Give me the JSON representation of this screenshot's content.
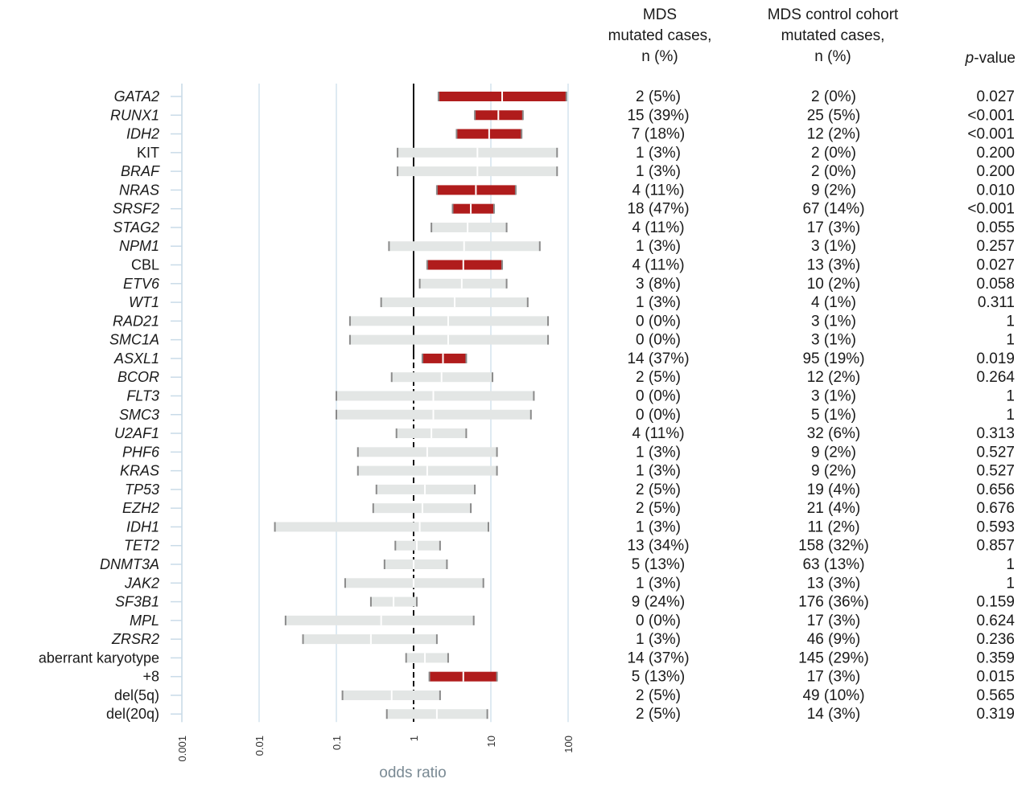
{
  "headers": {
    "mds": [
      "MDS",
      "mutated cases,",
      "n (%)"
    ],
    "control": [
      "MDS control cohort",
      "mutated cases,",
      "n (%)"
    ],
    "pvalue_italic": "p",
    "pvalue_rest": "-value"
  },
  "chart_data": {
    "type": "forest",
    "xlabel": "odds ratio",
    "x_scale": "log10",
    "xlim": [
      0.001,
      100
    ],
    "x_ticks": [
      "0.001",
      "0.01",
      "0.1",
      "1",
      "10",
      "100"
    ],
    "x_tick_values": [
      0.001,
      0.01,
      0.1,
      1,
      10,
      100
    ],
    "reference_line": 1,
    "colors": {
      "significant": "#b01c1c",
      "non_significant": "#e3e6e5",
      "axis": "#c9dbe8",
      "cap": "#8a8a8a"
    },
    "rows": [
      {
        "label": "GATA2",
        "italic": true,
        "lo": 2.1,
        "or": 14,
        "hi": 95,
        "sig": true,
        "mds": "2 (5%)",
        "ctrl": "2 (0%)",
        "p": "0.027"
      },
      {
        "label": "RUNX1",
        "italic": true,
        "lo": 6.2,
        "or": 12.5,
        "hi": 26,
        "sig": true,
        "mds": "15 (39%)",
        "ctrl": "25 (5%)",
        "p": "<0.001"
      },
      {
        "label": "IDH2",
        "italic": true,
        "lo": 3.6,
        "or": 9.5,
        "hi": 25,
        "sig": true,
        "mds": "7 (18%)",
        "ctrl": "12 (2%)",
        "p": "<0.001"
      },
      {
        "label": "KIT",
        "italic": false,
        "lo": 0.62,
        "or": 6.7,
        "hi": 72,
        "sig": false,
        "mds": "1 (3%)",
        "ctrl": "2 (0%)",
        "p": "0.200"
      },
      {
        "label": "BRAF",
        "italic": true,
        "lo": 0.62,
        "or": 6.7,
        "hi": 72,
        "sig": false,
        "mds": "1 (3%)",
        "ctrl": "2 (0%)",
        "p": "0.200"
      },
      {
        "label": "NRAS",
        "italic": true,
        "lo": 2.0,
        "or": 6.4,
        "hi": 21,
        "sig": true,
        "mds": "4 (11%)",
        "ctrl": "9 (2%)",
        "p": "0.010"
      },
      {
        "label": "SRSF2",
        "italic": true,
        "lo": 3.2,
        "or": 5.5,
        "hi": 11,
        "sig": true,
        "mds": "18 (47%)",
        "ctrl": "67 (14%)",
        "p": "<0.001"
      },
      {
        "label": "STAG2",
        "italic": true,
        "lo": 1.7,
        "or": 5.0,
        "hi": 16,
        "sig": false,
        "mds": "4 (11%)",
        "ctrl": "17 (3%)",
        "p": "0.055"
      },
      {
        "label": "NPM1",
        "italic": true,
        "lo": 0.48,
        "or": 4.5,
        "hi": 43,
        "sig": false,
        "mds": "1 (3%)",
        "ctrl": "3 (1%)",
        "p": "0.257"
      },
      {
        "label": "CBL",
        "italic": false,
        "lo": 1.5,
        "or": 4.4,
        "hi": 14,
        "sig": true,
        "mds": "4 (11%)",
        "ctrl": "13 (3%)",
        "p": "0.027"
      },
      {
        "label": "ETV6",
        "italic": true,
        "lo": 1.2,
        "or": 4.2,
        "hi": 16,
        "sig": false,
        "mds": "3 (8%)",
        "ctrl": "10 (2%)",
        "p": "0.058"
      },
      {
        "label": "WT1",
        "italic": true,
        "lo": 0.38,
        "or": 3.4,
        "hi": 30,
        "sig": false,
        "mds": "1 (3%)",
        "ctrl": "4 (1%)",
        "p": "0.311"
      },
      {
        "label": "RAD21",
        "italic": true,
        "lo": 0.15,
        "or": 2.8,
        "hi": 55,
        "sig": false,
        "mds": "0 (0%)",
        "ctrl": "3 (1%)",
        "p": "1"
      },
      {
        "label": "SMC1A",
        "italic": true,
        "lo": 0.15,
        "or": 2.8,
        "hi": 55,
        "sig": false,
        "mds": "0 (0%)",
        "ctrl": "3 (1%)",
        "p": "1"
      },
      {
        "label": "ASXL1",
        "italic": true,
        "lo": 1.3,
        "or": 2.4,
        "hi": 4.8,
        "sig": true,
        "mds": "14 (37%)",
        "ctrl": "95 (19%)",
        "p": "0.019"
      },
      {
        "label": "BCOR",
        "italic": true,
        "lo": 0.52,
        "or": 2.3,
        "hi": 10.5,
        "sig": false,
        "mds": "2 (5%)",
        "ctrl": "12 (2%)",
        "p": "0.264"
      },
      {
        "label": "FLT3",
        "italic": true,
        "lo": 0.1,
        "or": 1.8,
        "hi": 36,
        "sig": false,
        "mds": "0 (0%)",
        "ctrl": "3 (1%)",
        "p": "1"
      },
      {
        "label": "SMC3",
        "italic": true,
        "lo": 0.1,
        "or": 1.8,
        "hi": 33,
        "sig": false,
        "mds": "0 (0%)",
        "ctrl": "5 (1%)",
        "p": "1"
      },
      {
        "label": "U2AF1",
        "italic": true,
        "lo": 0.6,
        "or": 1.7,
        "hi": 4.8,
        "sig": false,
        "mds": "4 (11%)",
        "ctrl": "32 (6%)",
        "p": "0.313"
      },
      {
        "label": "PHF6",
        "italic": true,
        "lo": 0.19,
        "or": 1.5,
        "hi": 12,
        "sig": false,
        "mds": "1 (3%)",
        "ctrl": "9 (2%)",
        "p": "0.527"
      },
      {
        "label": "KRAS",
        "italic": true,
        "lo": 0.19,
        "or": 1.5,
        "hi": 12,
        "sig": false,
        "mds": "1 (3%)",
        "ctrl": "9 (2%)",
        "p": "0.527"
      },
      {
        "label": "TP53",
        "italic": true,
        "lo": 0.33,
        "or": 1.4,
        "hi": 6.2,
        "sig": false,
        "mds": "2 (5%)",
        "ctrl": "19 (4%)",
        "p": "0.656"
      },
      {
        "label": "EZH2",
        "italic": true,
        "lo": 0.3,
        "or": 1.3,
        "hi": 5.5,
        "sig": false,
        "mds": "2 (5%)",
        "ctrl": "21 (4%)",
        "p": "0.676"
      },
      {
        "label": "IDH1",
        "italic": true,
        "lo": 0.016,
        "or": 1.2,
        "hi": 9.3,
        "sig": false,
        "mds": "1 (3%)",
        "ctrl": "11 (2%)",
        "p": "0.593"
      },
      {
        "label": "TET2",
        "italic": true,
        "lo": 0.58,
        "or": 1.1,
        "hi": 2.2,
        "sig": false,
        "mds": "13 (34%)",
        "ctrl": "158 (32%)",
        "p": "0.857"
      },
      {
        "label": "DNMT3A",
        "italic": true,
        "lo": 0.42,
        "or": 1.0,
        "hi": 2.7,
        "sig": false,
        "mds": "5 (13%)",
        "ctrl": "63 (13%)",
        "p": "1"
      },
      {
        "label": "JAK2",
        "italic": true,
        "lo": 0.13,
        "or": 1.0,
        "hi": 8,
        "sig": false,
        "mds": "1 (3%)",
        "ctrl": "13 (3%)",
        "p": "1"
      },
      {
        "label": "SF3B1",
        "italic": true,
        "lo": 0.28,
        "or": 0.55,
        "hi": 1.1,
        "sig": false,
        "mds": "9 (24%)",
        "ctrl": "176 (36%)",
        "p": "0.159"
      },
      {
        "label": "MPL",
        "italic": true,
        "lo": 0.022,
        "or": 0.38,
        "hi": 6,
        "sig": false,
        "mds": "0 (0%)",
        "ctrl": "17 (3%)",
        "p": "0.624"
      },
      {
        "label": "ZRSR2",
        "italic": true,
        "lo": 0.037,
        "or": 0.28,
        "hi": 2.0,
        "sig": false,
        "mds": "1 (3%)",
        "ctrl": "46 (9%)",
        "p": "0.236"
      },
      {
        "label": "aberrant karyotype",
        "italic": false,
        "lo": 0.8,
        "or": 1.4,
        "hi": 2.8,
        "sig": false,
        "mds": "14 (37%)",
        "ctrl": "145 (29%)",
        "p": "0.359"
      },
      {
        "label": "+8",
        "italic": false,
        "lo": 1.6,
        "or": 4.4,
        "hi": 12,
        "sig": true,
        "mds": "5 (13%)",
        "ctrl": "17 (3%)",
        "p": "0.015"
      },
      {
        "label": "del(5q)",
        "italic": false,
        "lo": 0.12,
        "or": 0.52,
        "hi": 2.2,
        "sig": false,
        "mds": "2 (5%)",
        "ctrl": "49 (10%)",
        "p": "0.565"
      },
      {
        "label": "del(20q)",
        "italic": false,
        "lo": 0.45,
        "or": 2.0,
        "hi": 9,
        "sig": false,
        "mds": "2 (5%)",
        "ctrl": "14 (3%)",
        "p": "0.319"
      }
    ]
  }
}
